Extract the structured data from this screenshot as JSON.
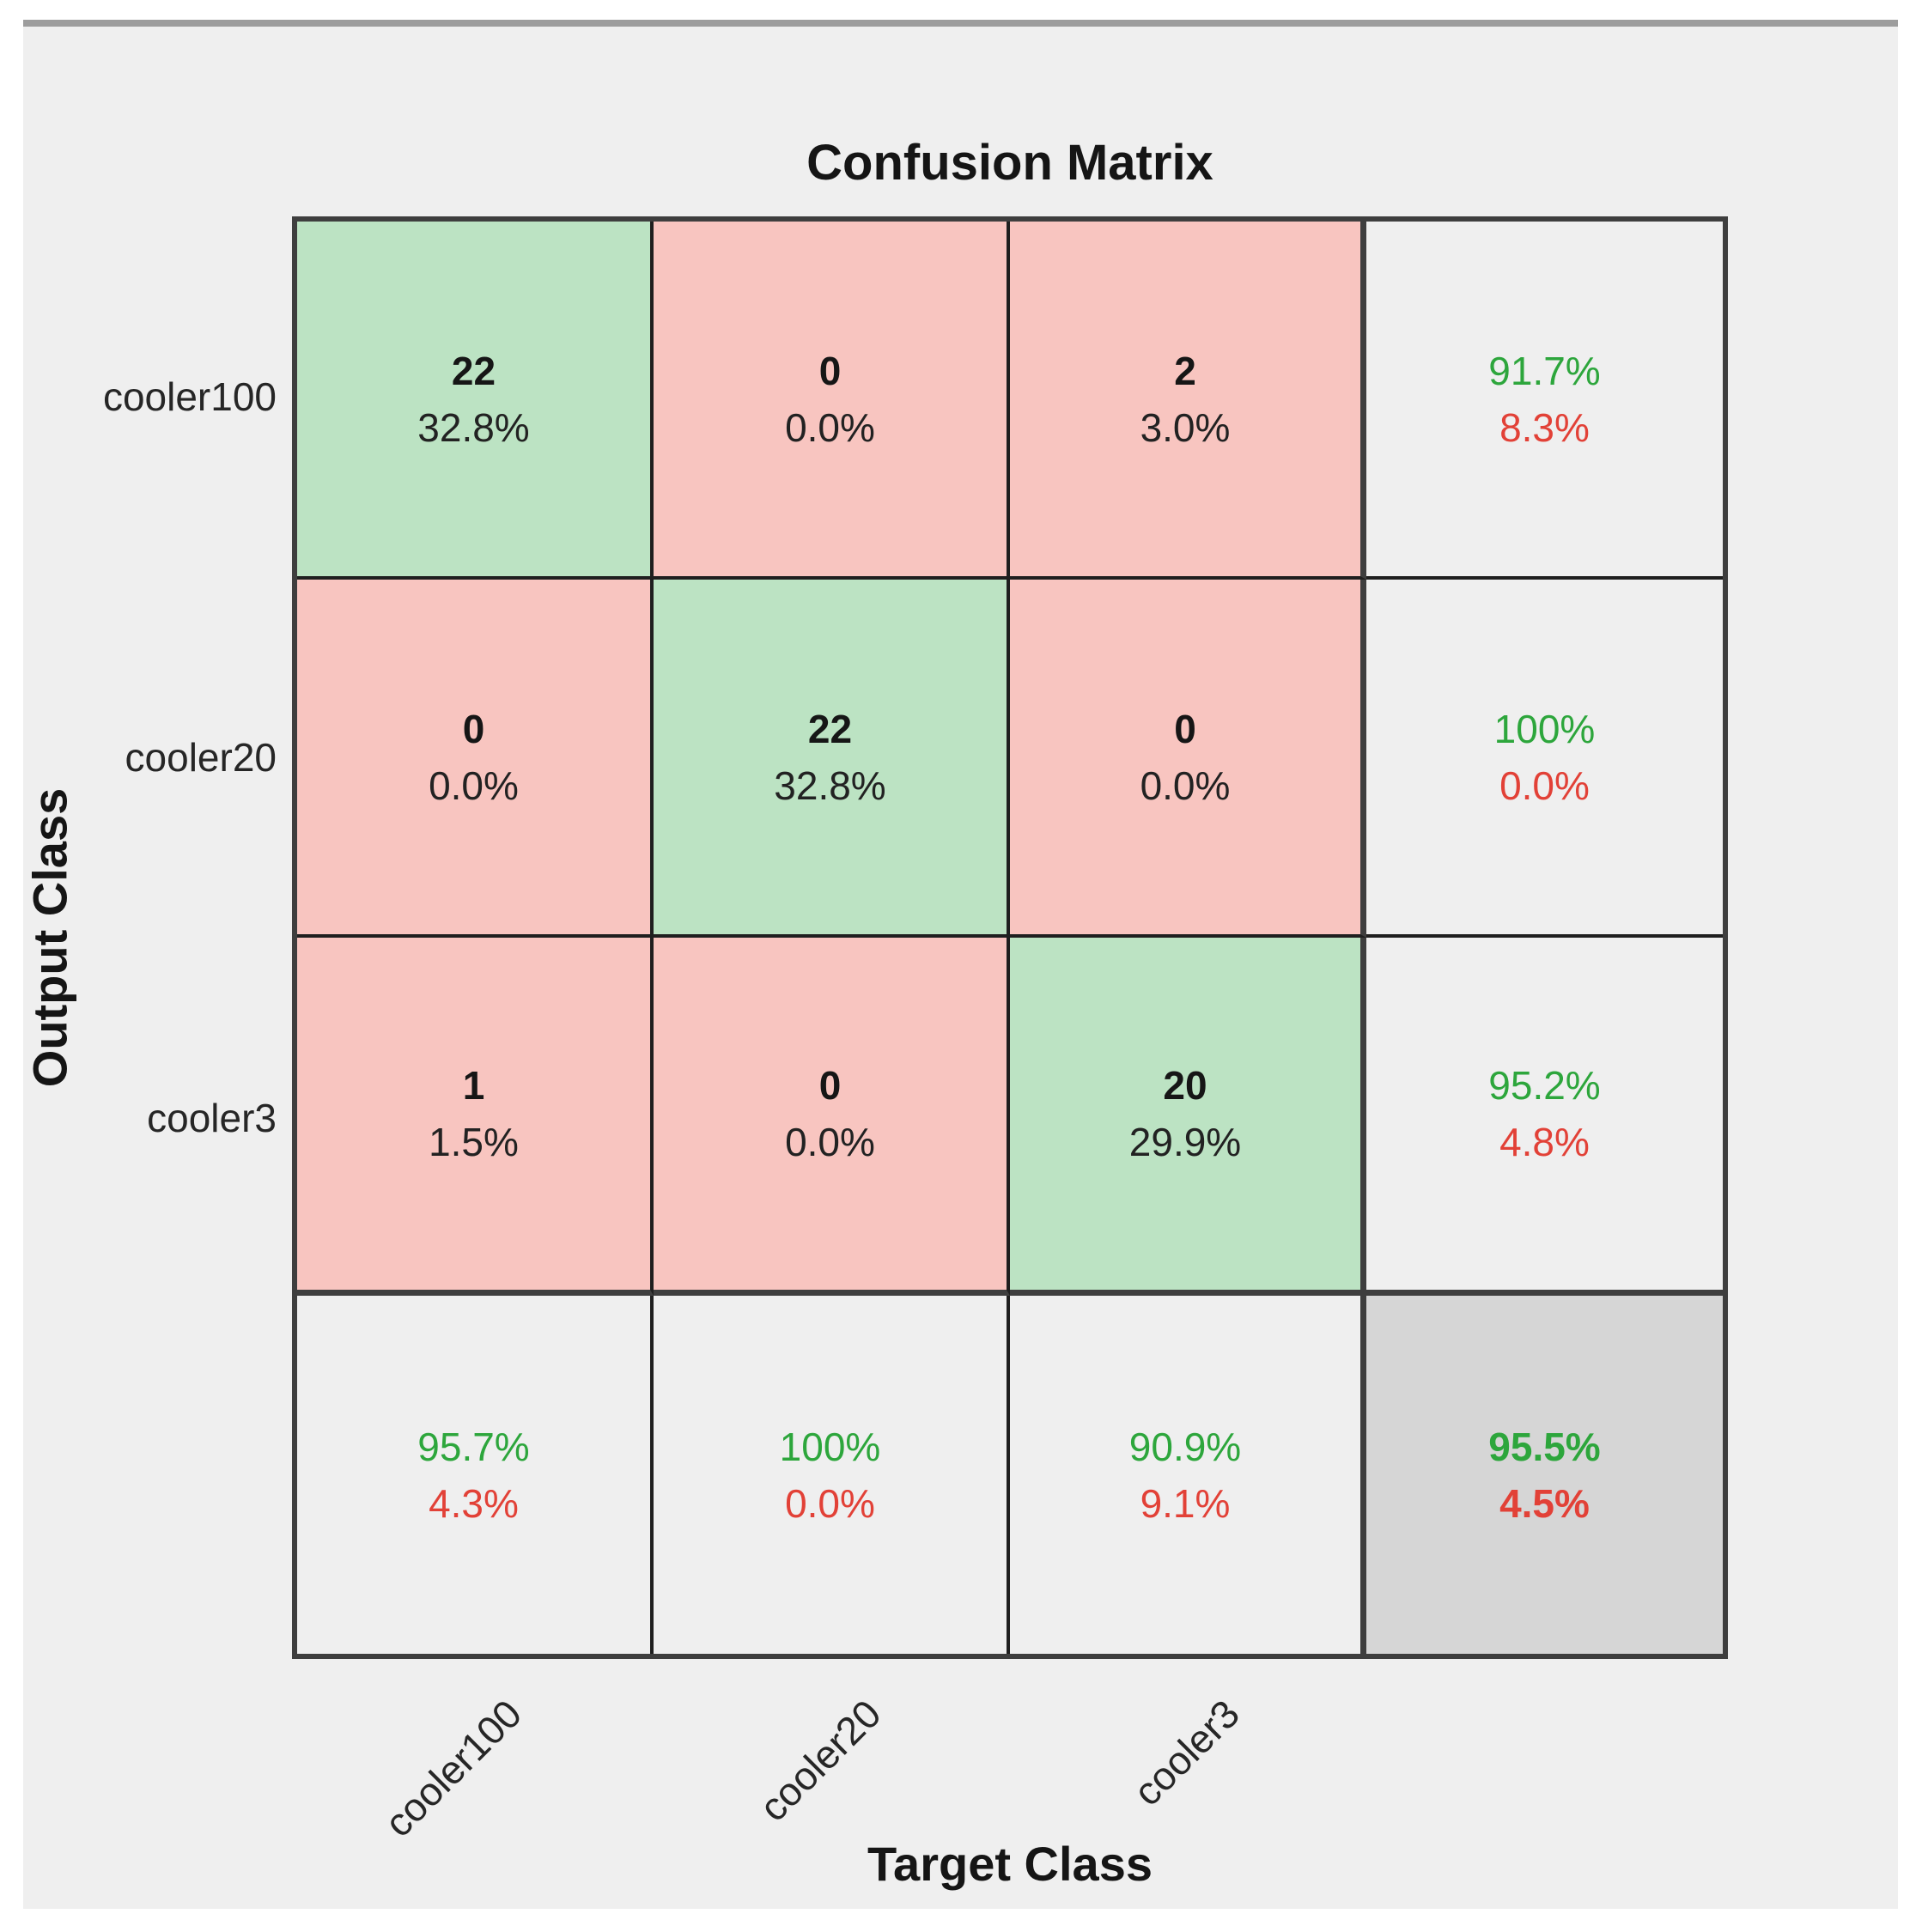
{
  "title": "Confusion Matrix",
  "x_axis_label": "Target Class",
  "y_axis_label": "Output Class",
  "x_tick_labels": [
    "cooler100",
    "cooler20",
    "cooler3"
  ],
  "y_tick_labels": [
    "cooler100",
    "cooler20",
    "cooler3"
  ],
  "colors": {
    "correct_cell": "#bce3c3",
    "incorrect_cell": "#f8c5c0",
    "summary_cell": "#efefef",
    "overall_cell": "#d6d6d6",
    "positive_text": "#2da63c",
    "negative_text": "#e24137",
    "figure_background": "#efefef"
  },
  "matrix": {
    "cells": [
      {
        "line1": "22",
        "line2": "32.8%"
      },
      {
        "line1": "0",
        "line2": "0.0%"
      },
      {
        "line1": "2",
        "line2": "3.0%"
      },
      {
        "line1": "91.7%",
        "line2": "8.3%"
      },
      {
        "line1": "0",
        "line2": "0.0%"
      },
      {
        "line1": "22",
        "line2": "32.8%"
      },
      {
        "line1": "0",
        "line2": "0.0%"
      },
      {
        "line1": "100%",
        "line2": "0.0%"
      },
      {
        "line1": "1",
        "line2": "1.5%"
      },
      {
        "line1": "0",
        "line2": "0.0%"
      },
      {
        "line1": "20",
        "line2": "29.9%"
      },
      {
        "line1": "95.2%",
        "line2": "4.8%"
      },
      {
        "line1": "95.7%",
        "line2": "4.3%"
      },
      {
        "line1": "100%",
        "line2": "0.0%"
      },
      {
        "line1": "90.9%",
        "line2": "9.1%"
      },
      {
        "line1": "95.5%",
        "line2": "4.5%"
      }
    ]
  },
  "chart_data": {
    "type": "heatmap",
    "title": "Confusion Matrix",
    "xlabel": "Target Class",
    "ylabel": "Output Class",
    "categories": [
      "cooler100",
      "cooler20",
      "cooler3"
    ],
    "counts": [
      [
        22,
        0,
        2
      ],
      [
        0,
        22,
        0
      ],
      [
        1,
        0,
        20
      ]
    ],
    "percent_of_total": [
      [
        "32.8%",
        "0.0%",
        "3.0%"
      ],
      [
        "0.0%",
        "32.8%",
        "0.0%"
      ],
      [
        "1.5%",
        "0.0%",
        "29.9%"
      ]
    ],
    "row_summary_precision": [
      [
        "91.7%",
        "8.3%"
      ],
      [
        "100%",
        "0.0%"
      ],
      [
        "95.2%",
        "4.8%"
      ]
    ],
    "column_summary_recall": [
      [
        "95.7%",
        "4.3%"
      ],
      [
        "100%",
        "0.0%"
      ],
      [
        "90.9%",
        "9.1%"
      ]
    ],
    "overall_accuracy": [
      "95.5%",
      "4.5%"
    ],
    "legend_position": "none",
    "grid": true
  }
}
